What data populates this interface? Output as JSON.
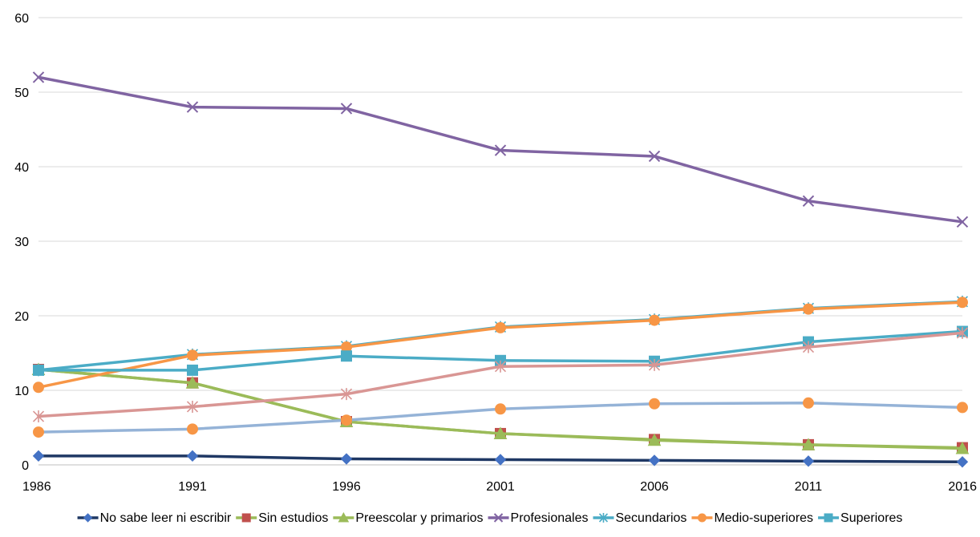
{
  "chart_data": {
    "type": "line",
    "title": "",
    "xlabel": "",
    "ylabel": "",
    "categories": [
      "1986",
      "1991",
      "1996",
      "2001",
      "2006",
      "2011",
      "2016"
    ],
    "ylim": [
      0,
      60
    ],
    "yticks": [
      "0",
      "10",
      "20",
      "30",
      "40",
      "50",
      "60"
    ],
    "grid": true,
    "legend_position": "bottom",
    "series": [
      {
        "name": "No sabe leer ni escribir",
        "color": "#1f3864",
        "marker": "diamond",
        "marker_color": "#4472c4",
        "values": [
          1.2,
          1.2,
          0.8,
          0.7,
          0.6,
          0.5,
          0.4
        ]
      },
      {
        "name": "Sin estudios",
        "color": "#9bbb59",
        "marker": "square",
        "marker_color": "#c0504d",
        "values": [
          12.8,
          11.0,
          5.8,
          4.2,
          3.4,
          2.7,
          2.3
        ]
      },
      {
        "name": "Preescolar y primarios",
        "color": "#9bbb59",
        "marker": "triangle",
        "marker_color": "#9bbb59",
        "values": [
          12.8,
          11.0,
          5.8,
          4.2,
          3.3,
          2.7,
          2.2
        ]
      },
      {
        "name": "Profesionales",
        "color": "#8064a2",
        "marker": "x",
        "marker_color": "#8064a2",
        "values": [
          52.0,
          48.0,
          47.8,
          42.2,
          41.4,
          35.4,
          32.6
        ]
      },
      {
        "name": "Secundarios",
        "color": "#4bacc6",
        "marker": "star",
        "marker_color": "#4bacc6",
        "values": [
          12.7,
          14.8,
          15.9,
          18.5,
          19.5,
          21.0,
          21.9
        ]
      },
      {
        "name": "Medio-superiores",
        "color": "#f79646",
        "marker": "circle",
        "marker_color": "#f79646",
        "values": [
          10.4,
          14.7,
          15.8,
          18.4,
          19.4,
          20.9,
          21.8
        ]
      },
      {
        "name": "Superiores",
        "color": "#4bacc6",
        "marker": "square",
        "marker_color": "#4bacc6",
        "values": [
          12.7,
          12.7,
          14.6,
          14.0,
          13.9,
          16.5,
          17.9
        ]
      },
      {
        "name": "",
        "color": "#d99694",
        "marker": "star",
        "marker_color": "#d99694",
        "values": [
          6.5,
          7.8,
          9.5,
          13.2,
          13.4,
          15.8,
          17.7
        ]
      },
      {
        "name": "",
        "color": "#95b3d7",
        "marker": "circle",
        "marker_color": "#f79646",
        "values": [
          4.4,
          4.8,
          6.0,
          7.5,
          8.2,
          8.3,
          7.7
        ]
      }
    ]
  }
}
